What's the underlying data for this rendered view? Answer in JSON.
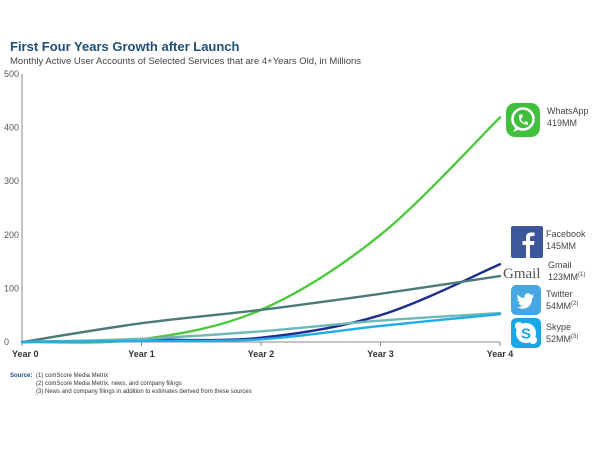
{
  "chart_data": {
    "type": "line",
    "title": "First Four Years Growth after Launch",
    "subtitle": "Monthly Active User Accounts of Selected Services that are 4+Years Old, in Millions",
    "categories": [
      "Year 0",
      "Year 1",
      "Year 2",
      "Year 3",
      "Year 4"
    ],
    "x": [
      0,
      1,
      2,
      3,
      4
    ],
    "ylim": [
      0,
      500
    ],
    "yticks": [
      "500",
      "400",
      "300",
      "200",
      "100",
      "0"
    ],
    "series": [
      {
        "name": "WhatsApp",
        "value_label": "419MM",
        "sup": "",
        "color": "#4cc93d",
        "icon": "whatsapp-icon",
        "values": [
          0,
          5,
          60,
          200,
          419
        ]
      },
      {
        "name": "Facebook",
        "value_label": "145MM",
        "sup": "",
        "color": "#1c2f8c",
        "icon": "facebook-icon",
        "values": [
          0,
          4,
          8,
          50,
          145
        ]
      },
      {
        "name": "Gmail",
        "value_label": "123MM",
        "sup": "(1)",
        "color": "#4a7a7a",
        "icon": "gmail-icon",
        "values": [
          0,
          35,
          60,
          90,
          123
        ]
      },
      {
        "name": "Twitter",
        "value_label": "54MM",
        "sup": "(2)",
        "color": "#6fb8b8",
        "icon": "twitter-icon",
        "values": [
          0,
          6,
          20,
          40,
          54
        ]
      },
      {
        "name": "Skype",
        "value_label": "52MM",
        "sup": "(3)",
        "color": "#22aee5",
        "icon": "skype-icon",
        "values": [
          0,
          2,
          5,
          30,
          52
        ]
      }
    ]
  },
  "icons": {
    "gmail_logo": "Gmail"
  },
  "source": {
    "heading": "Source:",
    "notes": [
      "(1) comScore Media Metrix",
      "(2) comScore Media Metrix, news, and company filings",
      "(3) News and company filings in addition to estimates derived from these sources"
    ]
  }
}
